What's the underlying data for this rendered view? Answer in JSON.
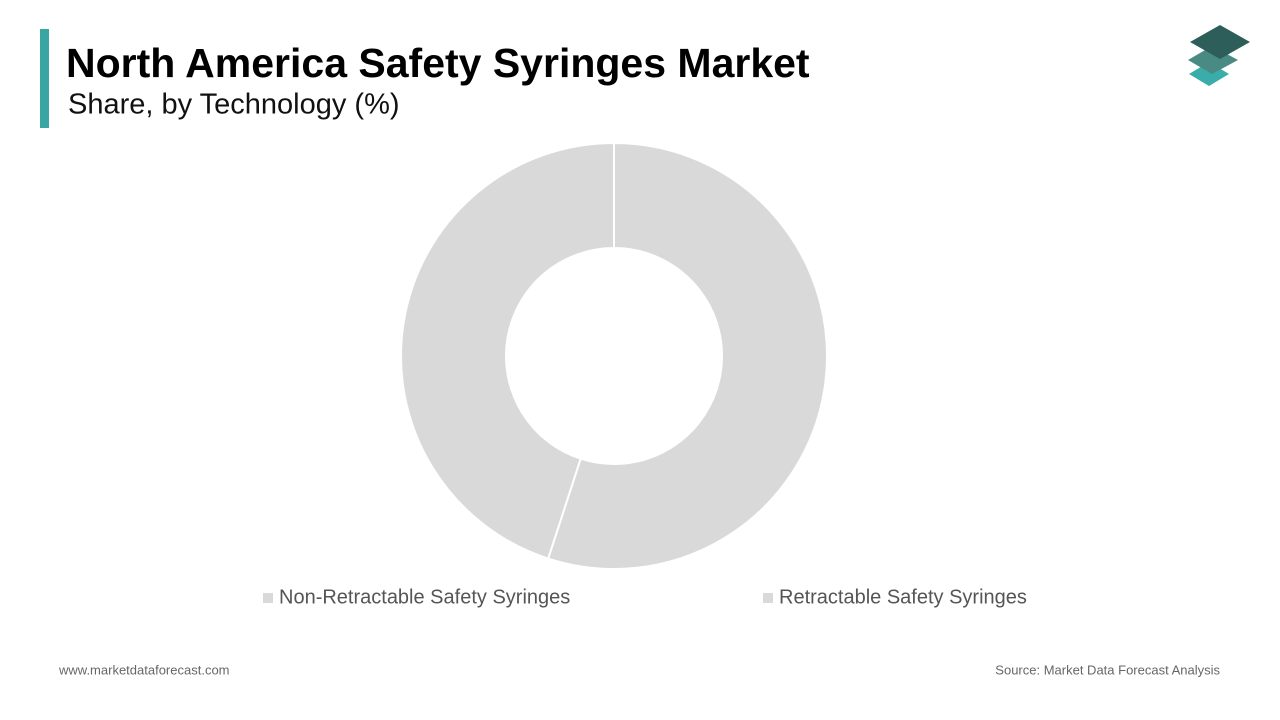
{
  "chart_data": {
    "type": "donut",
    "title": "North America Safety Syringes Market",
    "subtitle": "Share, by Technology (%)",
    "categories": [
      "Non-Retractable Safety Syringes",
      "Retractable Safety Syringes"
    ],
    "values": [
      55,
      45
    ],
    "colors": [
      "#d9d9d9",
      "#d9d9d9"
    ]
  },
  "footer": {
    "website": "www.marketdataforecast.com",
    "source": "Source: Market Data Forecast Analysis"
  }
}
